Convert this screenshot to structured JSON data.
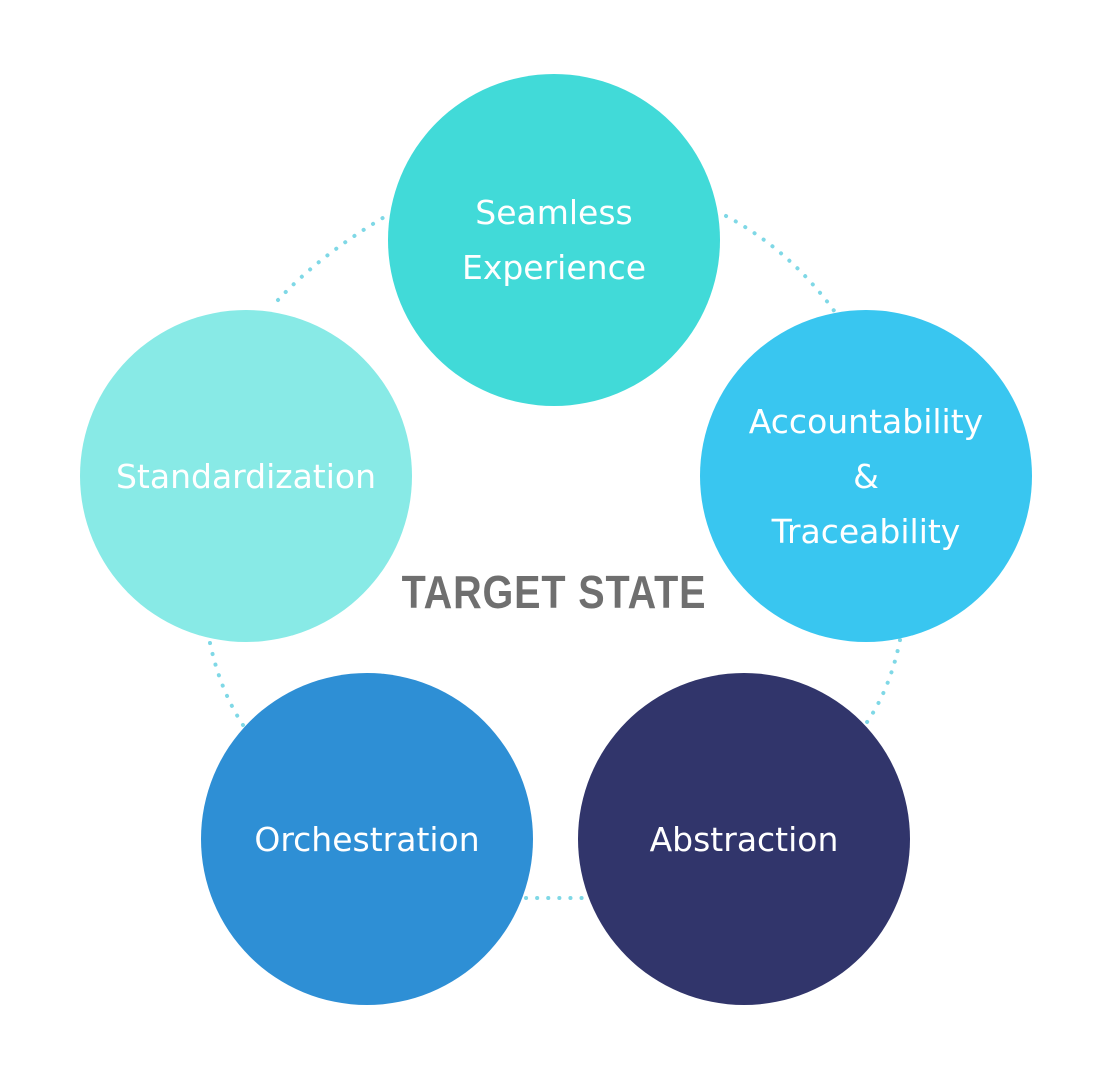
{
  "title": "TARGET STATE",
  "colors": {
    "title": "#6f6f6f",
    "connector": "#7fd8e6",
    "label": "#ffffff"
  },
  "nodes": [
    {
      "label": "Seamless\nExperience",
      "color": "#41dad8"
    },
    {
      "label": "Accountability\n&\nTraceability",
      "color": "#39c6f0"
    },
    {
      "label": "Abstraction",
      "color": "#31356b"
    },
    {
      "label": "Orchestration",
      "color": "#2e8fd5"
    },
    {
      "label": "Standardization",
      "color": "#88eae6"
    }
  ]
}
